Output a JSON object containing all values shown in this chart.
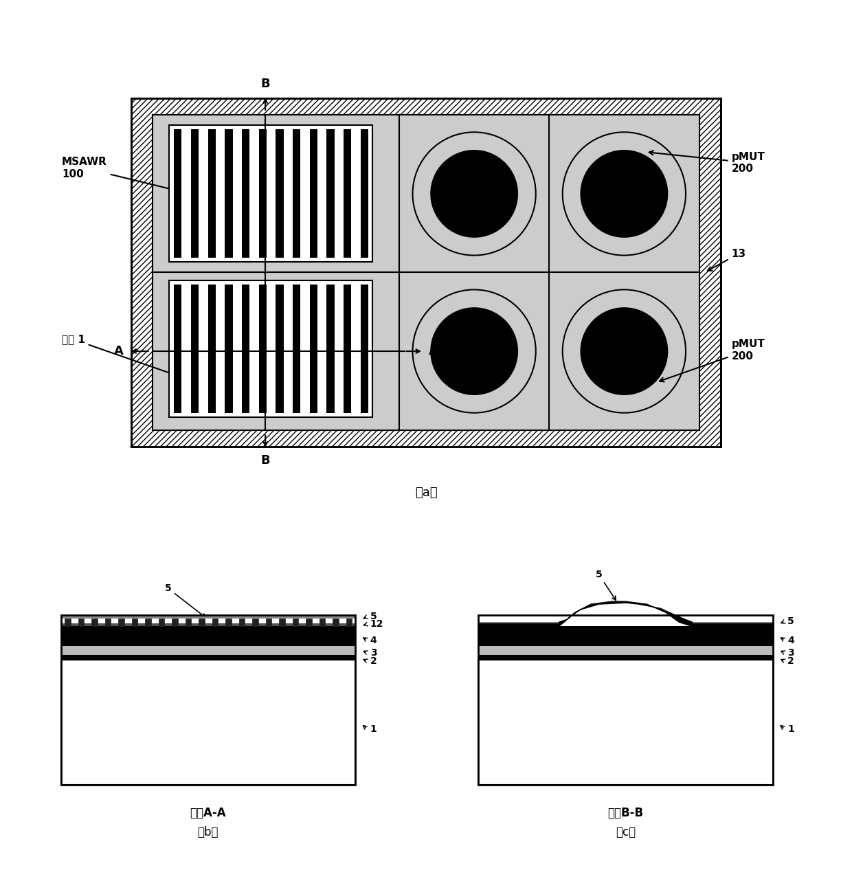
{
  "bg_color": "#ffffff",
  "fig_width": 12.4,
  "fig_height": 12.79,
  "labels": {
    "MSAWR": "MSAWR\n100",
    "pMUT_top": "pMUT\n200",
    "pMUT_bot": "pMUT\n200",
    "substrate": "衯底 1",
    "label_13": "13",
    "section_aa": "截面A-A",
    "section_bb": "截面B-B",
    "label_1": "1",
    "label_2": "2",
    "label_3": "3",
    "label_4": "4",
    "label_5": "5",
    "label_12": "12"
  },
  "panel_a_label": "（a）",
  "panel_b_label": "（b）",
  "panel_c_label": "（c）"
}
